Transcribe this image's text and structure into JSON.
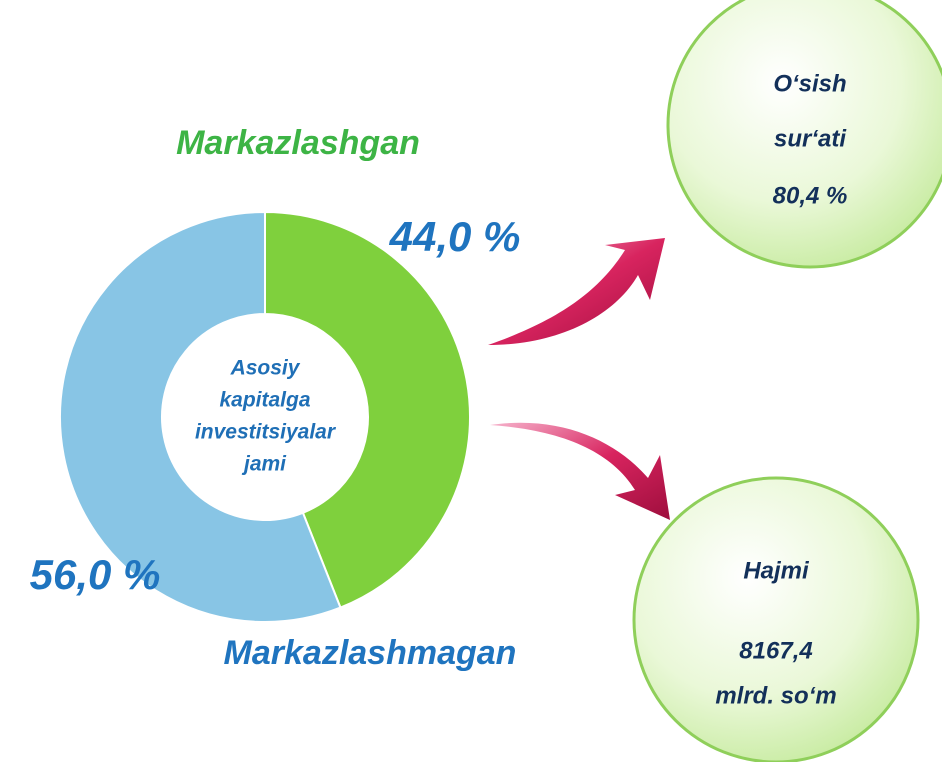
{
  "chart_data": {
    "type": "pie",
    "donut": true,
    "categories": [
      "Markazlashgan",
      "Markazlashmagan"
    ],
    "values": [
      44.0,
      56.0
    ],
    "value_labels": [
      "44,0 %",
      "56,0 %"
    ],
    "colors": [
      "#7fd03d",
      "#88c5e5"
    ],
    "center_label": [
      "Asosiy",
      "kapitalga",
      "investitsiyalar",
      "jami"
    ]
  },
  "callouts": [
    {
      "lines": [
        "O‘sish",
        "sur‘ati",
        "80,4 %"
      ]
    },
    {
      "lines": [
        "Hajmi",
        "8167,4",
        "mlrd. so‘m"
      ]
    }
  ]
}
